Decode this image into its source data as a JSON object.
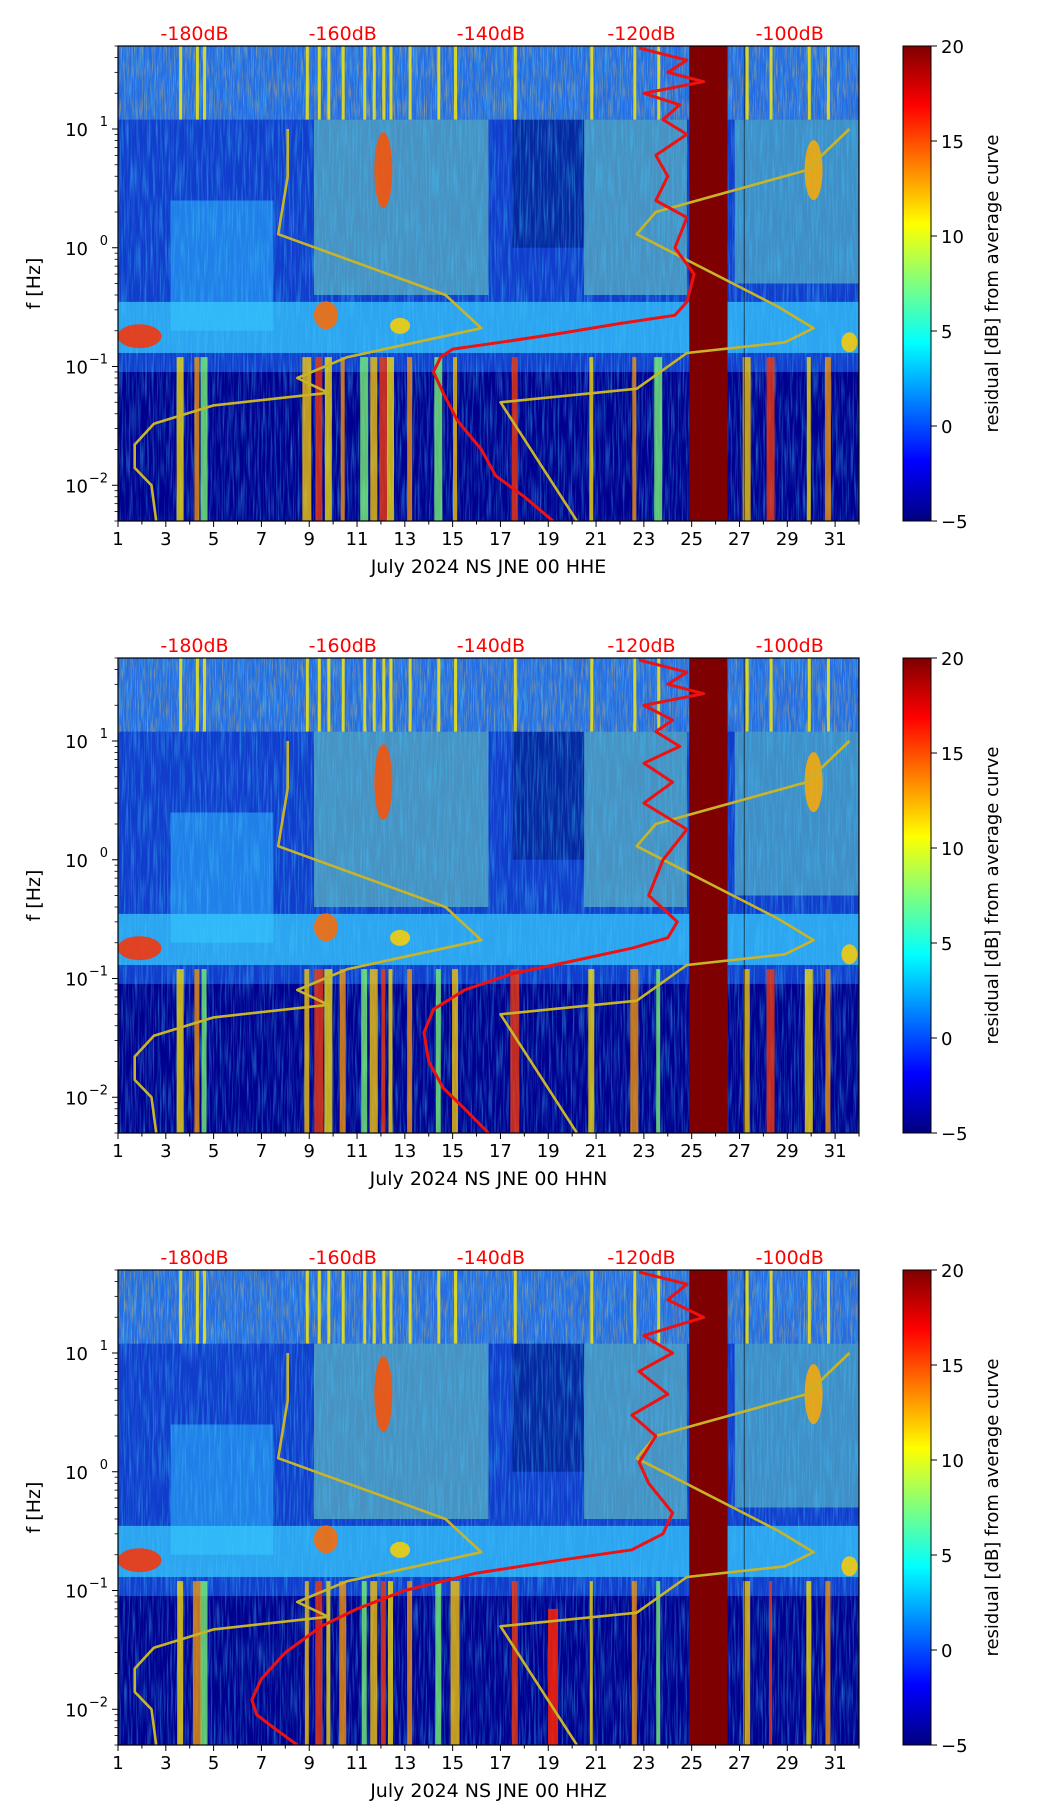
{
  "colors": {
    "pressure_line": "#ee1111",
    "noise_model": "#c8b428",
    "db_label": "#ff0000"
  },
  "colormap": {
    "name": "jet",
    "stops": [
      "#00007f",
      "#0000ff",
      "#007fff",
      "#00ffff",
      "#7fff7f",
      "#ffff00",
      "#ff7f00",
      "#ff0000",
      "#7f0000"
    ]
  },
  "chart_data": [
    {
      "type": "heatmap",
      "component": "HHE",
      "xlabel": "July 2024 NS JNE 00 HHE",
      "ylabel": "f [Hz]",
      "xlim": [
        1,
        32
      ],
      "ylim": [
        0.005,
        50
      ],
      "yscale": "log",
      "x_ticks": [
        "1",
        "3",
        "5",
        "7",
        "9",
        "11",
        "13",
        "15",
        "17",
        "19",
        "21",
        "23",
        "25",
        "27",
        "29",
        "31"
      ],
      "y_ticks": [
        {
          "base": "10",
          "exp": "1",
          "value": 10
        },
        {
          "base": "10",
          "exp": "0",
          "value": 1
        },
        {
          "base": "10",
          "exp": "−1",
          "value": 0.1
        },
        {
          "base": "10",
          "exp": "−2",
          "value": 0.01
        }
      ],
      "db_scale": {
        "labels": [
          "-180dB",
          "-160dB",
          "-140dB",
          "-120dB",
          "-100dB"
        ],
        "day_positions": [
          4.2,
          10.4,
          16.6,
          22.9,
          29.1
        ]
      },
      "colorbar": {
        "label": "residual [dB] from average curve",
        "min": -5,
        "max": 20,
        "ticks": [
          "20",
          "15",
          "10",
          "5",
          "0",
          "−5"
        ]
      },
      "data_gap": [
        24.9,
        26.5
      ],
      "series": [
        {
          "name": "noise-model-curve",
          "x": [
            2.6,
            2.4,
            1.7,
            1.7,
            2.5,
            5.0,
            9.8,
            8.5,
            10.6,
            16.2,
            14.7,
            7.7,
            8.1,
            8.1
          ],
          "y": [
            0.005,
            0.01,
            0.014,
            0.022,
            0.033,
            0.047,
            0.06,
            0.08,
            0.12,
            0.21,
            0.4,
            1.3,
            4.0,
            10.0
          ]
        },
        {
          "name": "noise-model-curve-shifted",
          "x": [
            20.2,
            17.0,
            22.7,
            24.8,
            28.9,
            30.1,
            28.6,
            22.7,
            23.5,
            29.8,
            31.6
          ],
          "y": [
            0.005,
            0.05,
            0.065,
            0.13,
            0.16,
            0.21,
            0.32,
            1.3,
            2.0,
            4.5,
            10.0
          ]
        },
        {
          "name": "pressure-curve",
          "x": [
            19.2,
            18.0,
            16.8,
            16.2,
            15.2,
            14.6,
            14.2,
            14.5,
            15.0,
            17.0,
            19.5,
            22.0,
            24.3,
            24.8,
            25.1,
            24.3,
            24.8,
            23.5,
            24.0,
            23.5,
            24.8,
            23.8,
            24.5,
            23.0,
            25.5,
            24.0,
            24.8,
            22.8
          ],
          "y": [
            0.005,
            0.008,
            0.012,
            0.02,
            0.035,
            0.06,
            0.09,
            0.12,
            0.14,
            0.16,
            0.19,
            0.23,
            0.27,
            0.35,
            0.6,
            1.0,
            1.8,
            2.5,
            4.0,
            6.0,
            9.0,
            12.0,
            16.0,
            20.0,
            25.0,
            30.0,
            38.0,
            48.0
          ]
        }
      ]
    },
    {
      "type": "heatmap",
      "component": "HHN",
      "xlabel": "July 2024 NS JNE 00 HHN",
      "ylabel": "f [Hz]",
      "xlim": [
        1,
        32
      ],
      "ylim": [
        0.005,
        50
      ],
      "yscale": "log",
      "x_ticks": [
        "1",
        "3",
        "5",
        "7",
        "9",
        "11",
        "13",
        "15",
        "17",
        "19",
        "21",
        "23",
        "25",
        "27",
        "29",
        "31"
      ],
      "y_ticks": [
        {
          "base": "10",
          "exp": "1",
          "value": 10
        },
        {
          "base": "10",
          "exp": "0",
          "value": 1
        },
        {
          "base": "10",
          "exp": "−1",
          "value": 0.1
        },
        {
          "base": "10",
          "exp": "−2",
          "value": 0.01
        }
      ],
      "db_scale": {
        "labels": [
          "-180dB",
          "-160dB",
          "-140dB",
          "-120dB",
          "-100dB"
        ],
        "day_positions": [
          4.2,
          10.4,
          16.6,
          22.9,
          29.1
        ]
      },
      "colorbar": {
        "label": "residual [dB] from average curve",
        "min": -5,
        "max": 20,
        "ticks": [
          "20",
          "15",
          "10",
          "5",
          "0",
          "−5"
        ]
      },
      "data_gap": [
        24.9,
        26.5
      ],
      "series": [
        {
          "name": "noise-model-curve",
          "x": [
            2.6,
            2.4,
            1.7,
            1.7,
            2.5,
            5.0,
            9.8,
            8.5,
            10.6,
            16.2,
            14.7,
            7.7,
            8.1,
            8.1
          ],
          "y": [
            0.005,
            0.01,
            0.014,
            0.022,
            0.033,
            0.047,
            0.06,
            0.08,
            0.12,
            0.21,
            0.4,
            1.3,
            4.0,
            10.0
          ]
        },
        {
          "name": "noise-model-curve-shifted",
          "x": [
            20.2,
            17.0,
            22.7,
            24.8,
            28.9,
            30.1,
            28.6,
            22.7,
            23.5,
            29.8,
            31.6
          ],
          "y": [
            0.005,
            0.05,
            0.065,
            0.13,
            0.16,
            0.21,
            0.32,
            1.3,
            2.0,
            4.5,
            10.0
          ]
        },
        {
          "name": "pressure-curve",
          "x": [
            16.5,
            15.5,
            14.6,
            14.0,
            13.8,
            14.2,
            15.5,
            17.5,
            20.0,
            22.5,
            24.0,
            24.4,
            23.2,
            23.8,
            24.8,
            23.0,
            24.2,
            23.0,
            24.5,
            23.5,
            24.2,
            23.0,
            25.5,
            24.0,
            24.8,
            22.8
          ],
          "y": [
            0.005,
            0.008,
            0.012,
            0.02,
            0.035,
            0.055,
            0.08,
            0.11,
            0.14,
            0.18,
            0.22,
            0.3,
            0.5,
            1.0,
            1.8,
            3.0,
            4.5,
            6.5,
            9.0,
            12.0,
            15.0,
            20.0,
            25.0,
            30.0,
            38.0,
            48.0
          ]
        }
      ]
    },
    {
      "type": "heatmap",
      "component": "HHZ",
      "xlabel": "July 2024 NS JNE 00 HHZ",
      "ylabel": "f [Hz]",
      "xlim": [
        1,
        32
      ],
      "ylim": [
        0.005,
        50
      ],
      "yscale": "log",
      "x_ticks": [
        "1",
        "3",
        "5",
        "7",
        "9",
        "11",
        "13",
        "15",
        "17",
        "19",
        "21",
        "23",
        "25",
        "27",
        "29",
        "31"
      ],
      "y_ticks": [
        {
          "base": "10",
          "exp": "1",
          "value": 10
        },
        {
          "base": "10",
          "exp": "0",
          "value": 1
        },
        {
          "base": "10",
          "exp": "−1",
          "value": 0.1
        },
        {
          "base": "10",
          "exp": "−2",
          "value": 0.01
        }
      ],
      "db_scale": {
        "labels": [
          "-180dB",
          "-160dB",
          "-140dB",
          "-120dB",
          "-100dB"
        ],
        "day_positions": [
          4.2,
          10.4,
          16.6,
          22.9,
          29.1
        ]
      },
      "colorbar": {
        "label": "residual [dB] from average curve",
        "min": -5,
        "max": 20,
        "ticks": [
          "20",
          "15",
          "10",
          "5",
          "0",
          "−5"
        ]
      },
      "data_gap": [
        24.9,
        26.5
      ],
      "series": [
        {
          "name": "noise-model-curve",
          "x": [
            2.6,
            2.4,
            1.7,
            1.7,
            2.5,
            5.0,
            9.8,
            8.5,
            10.6,
            16.2,
            14.7,
            7.7,
            8.1,
            8.1
          ],
          "y": [
            0.005,
            0.01,
            0.014,
            0.022,
            0.033,
            0.047,
            0.06,
            0.08,
            0.12,
            0.21,
            0.4,
            1.3,
            4.0,
            10.0
          ]
        },
        {
          "name": "noise-model-curve-shifted",
          "x": [
            20.2,
            17.0,
            22.7,
            24.8,
            28.9,
            30.1,
            28.6,
            22.7,
            23.5,
            29.8,
            31.6
          ],
          "y": [
            0.005,
            0.05,
            0.065,
            0.13,
            0.16,
            0.21,
            0.32,
            1.3,
            2.0,
            4.5,
            10.0
          ]
        },
        {
          "name": "pressure-curve",
          "x": [
            8.5,
            7.5,
            6.8,
            6.6,
            7.0,
            8.0,
            9.5,
            11.0,
            13.0,
            16.0,
            19.5,
            22.5,
            23.8,
            24.2,
            23.2,
            22.8,
            23.5,
            22.5,
            24.0,
            22.8,
            24.2,
            23.0,
            25.5,
            24.0,
            24.8,
            22.8
          ],
          "y": [
            0.005,
            0.007,
            0.009,
            0.012,
            0.018,
            0.03,
            0.05,
            0.07,
            0.1,
            0.14,
            0.18,
            0.22,
            0.3,
            0.45,
            0.8,
            1.2,
            2.0,
            3.0,
            4.5,
            7.0,
            10.0,
            14.0,
            20.0,
            28.0,
            38.0,
            48.0
          ]
        }
      ]
    }
  ]
}
